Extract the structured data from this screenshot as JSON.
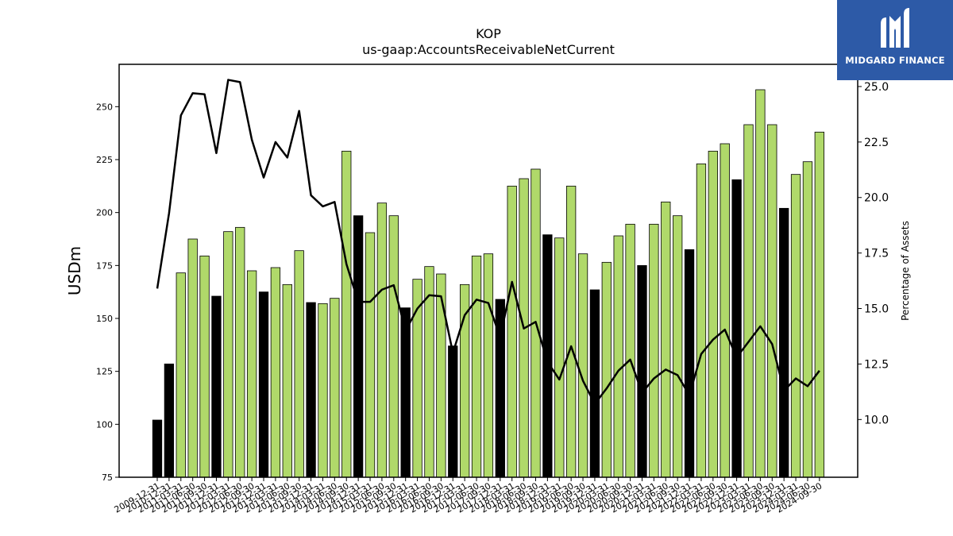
{
  "brand": {
    "name": "MIDGARD FINANCE",
    "bg_color": "#2d5aa7",
    "text_color": "#ffffff"
  },
  "colors": {
    "bar_green": "#b0d96a",
    "bar_black": "#000000",
    "line": "#000000"
  },
  "chart_data": {
    "type": "bar",
    "title": "KOP",
    "subtitle": "us-gaap:AccountsReceivableNetCurrent",
    "ylabel": "USDm",
    "y2label": "Percentage of Assets",
    "ylim": [
      75,
      270
    ],
    "y2lim": [
      7.4,
      26.0
    ],
    "yticks": [
      "75",
      "100",
      "125",
      "150",
      "175",
      "200",
      "225",
      "250"
    ],
    "y2ticks": [
      "10.0",
      "12.5",
      "15.0",
      "17.5",
      "20.0",
      "22.5",
      "25.0"
    ],
    "grid": false,
    "categories": [
      "2009-12-31",
      "2010-12-31",
      "2011-03-31",
      "2011-06-30",
      "2011-09-30",
      "2011-12-31",
      "2012-03-31",
      "2012-06-30",
      "2012-09-30",
      "2012-12-31",
      "2013-03-31",
      "2013-06-30",
      "2013-09-30",
      "2013-12-31",
      "2014-03-31",
      "2014-06-30",
      "2014-09-30",
      "2014-12-31",
      "2015-03-31",
      "2015-06-30",
      "2015-09-30",
      "2015-12-31",
      "2016-03-31",
      "2016-06-30",
      "2016-09-30",
      "2016-12-31",
      "2017-03-31",
      "2017-06-30",
      "2017-09-30",
      "2017-12-31",
      "2018-03-31",
      "2018-06-30",
      "2018-09-30",
      "2018-12-31",
      "2019-03-31",
      "2019-06-30",
      "2019-09-30",
      "2019-12-31",
      "2020-03-31",
      "2020-06-30",
      "2020-09-30",
      "2020-12-31",
      "2021-03-31",
      "2021-06-30",
      "2021-09-30",
      "2021-12-31",
      "2022-03-31",
      "2022-06-30",
      "2022-09-30",
      "2022-12-31",
      "2023-03-31",
      "2023-06-30",
      "2023-09-30",
      "2023-12-31",
      "2024-03-31",
      "2024-06-30",
      "2024-09-30"
    ],
    "series": [
      {
        "type": "bar",
        "values": [
          102,
          128.5,
          171.5,
          187.5,
          179.5,
          160.5,
          191,
          193,
          172.5,
          162.5,
          174,
          166,
          182,
          157.5,
          157,
          159.5,
          229,
          198.5,
          190.5,
          204.5,
          198.5,
          155,
          168.5,
          174.5,
          171,
          137,
          166,
          179.5,
          180.5,
          159,
          212.5,
          216,
          220.5,
          189.5,
          188,
          212.5,
          180.5,
          163.5,
          176.5,
          189,
          194.5,
          175,
          194.5,
          205,
          198.5,
          182.5,
          223,
          229,
          232.5,
          215.5,
          241.5,
          258,
          241.5,
          202,
          218,
          224,
          238
        ],
        "year_end": [
          true,
          true,
          false,
          false,
          false,
          true,
          false,
          false,
          false,
          true,
          false,
          false,
          false,
          true,
          false,
          false,
          false,
          true,
          false,
          false,
          false,
          true,
          false,
          false,
          false,
          true,
          false,
          false,
          false,
          true,
          false,
          false,
          false,
          true,
          false,
          false,
          false,
          true,
          false,
          false,
          false,
          true,
          false,
          false,
          false,
          true,
          false,
          false,
          false,
          true,
          false,
          false,
          false,
          true,
          false,
          false,
          false
        ]
      },
      {
        "type": "line",
        "axis": "right",
        "values": [
          15.9,
          19.3,
          23.7,
          24.7,
          24.65,
          22.0,
          25.3,
          25.2,
          22.6,
          20.9,
          22.5,
          21.8,
          23.9,
          20.1,
          19.6,
          19.8,
          17.0,
          15.3,
          15.3,
          15.85,
          16.05,
          14.0,
          15.0,
          15.6,
          15.55,
          13.0,
          14.7,
          15.4,
          15.25,
          13.7,
          16.2,
          14.1,
          14.4,
          12.6,
          11.8,
          13.3,
          11.75,
          10.7,
          11.4,
          12.2,
          12.7,
          11.2,
          11.85,
          12.25,
          12.0,
          11.1,
          12.95,
          13.6,
          14.05,
          12.8,
          13.5,
          14.2,
          13.4,
          11.3,
          11.85,
          11.5,
          12.2
        ]
      }
    ]
  }
}
